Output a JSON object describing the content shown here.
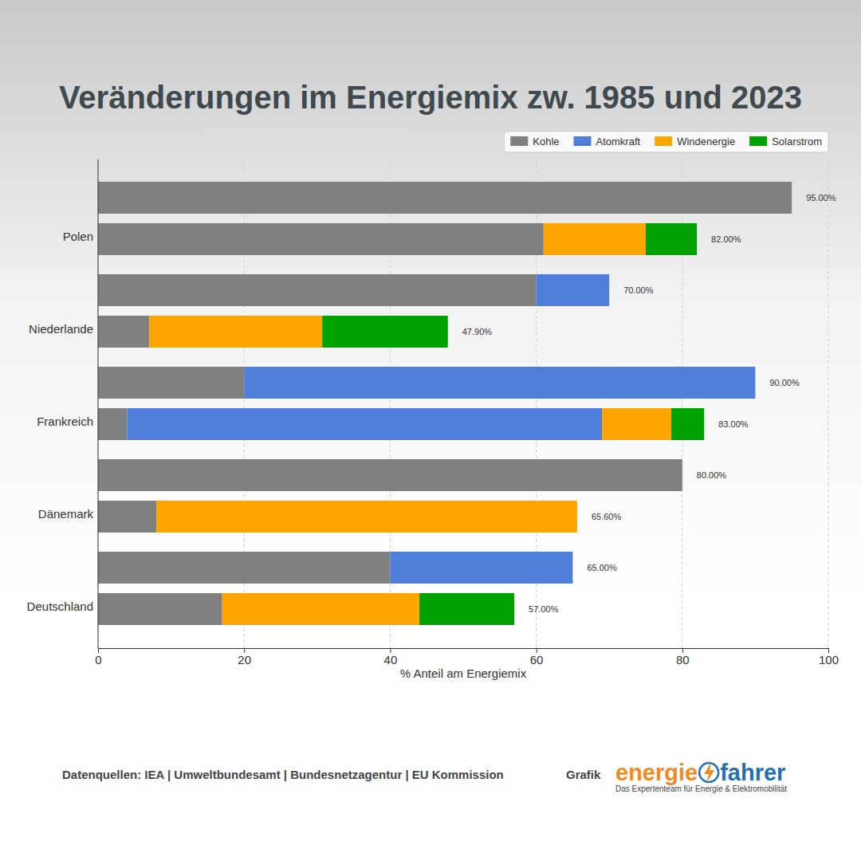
{
  "chart_data": {
    "type": "bar",
    "orientation": "horizontal",
    "stacked": true,
    "title": "Veränderungen im Energiemix zw. 1985 und 2023",
    "xlabel": "% Anteil am Energiemix",
    "categories": [
      null,
      "Polen",
      null,
      "Niederlande",
      null,
      "Frankreich",
      null,
      "Dänemark",
      null,
      "Deutschland"
    ],
    "series": [
      {
        "name": "Kohle",
        "color": "#808080",
        "values": [
          95,
          61,
          60,
          7,
          20,
          4,
          80,
          8,
          40,
          17
        ]
      },
      {
        "name": "Atomkraft",
        "color": "#4f7fd9",
        "values": [
          null,
          null,
          10,
          null,
          70,
          65,
          null,
          null,
          25,
          null
        ]
      },
      {
        "name": "Windenergie",
        "color": "#ffa500",
        "values": [
          null,
          14,
          null,
          23.7,
          null,
          9.5,
          null,
          57.6,
          null,
          27
        ]
      },
      {
        "name": "Solarstrom",
        "color": "#00a000",
        "values": [
          null,
          7,
          null,
          17.2,
          null,
          4.5,
          null,
          null,
          null,
          13
        ]
      }
    ],
    "totals": [
      95,
      82,
      70,
      47.9,
      90,
      83,
      80,
      65.6,
      65,
      57
    ],
    "total_labels": [
      "95.00%",
      "82.00%",
      "70.00%",
      "47.90%",
      "90.00%",
      "83.00%",
      "80.00%",
      "65.60%",
      "65.00%",
      "57.00%"
    ],
    "xlim": [
      0,
      100
    ],
    "xticks": [
      0,
      20,
      40,
      60,
      80,
      100
    ],
    "grid": true,
    "legend": "upper right",
    "source": "Datenquellen: IEA | Umweltbundesamt | Bundesnetzagentur | EU Kommission",
    "credit_label": "Grafik",
    "logo_text": [
      "energie",
      "fahrer"
    ],
    "logo_tagline": "Das Expertenteam für Energie & Elektromobilität"
  }
}
